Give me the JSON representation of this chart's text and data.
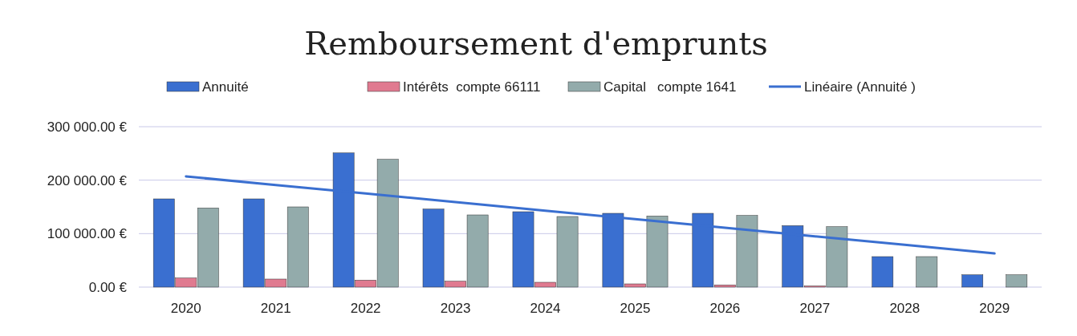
{
  "chart_data": {
    "type": "bar",
    "title": "Remboursement d'emprunts",
    "categories": [
      "2020",
      "2021",
      "2022",
      "2023",
      "2024",
      "2025",
      "2026",
      "2027",
      "2028",
      "2029"
    ],
    "series": [
      {
        "name": "Annuité",
        "color": "#3a6fd0",
        "values": [
          165000,
          165000,
          251000,
          146000,
          141000,
          138000,
          138000,
          115000,
          57000,
          23000
        ]
      },
      {
        "name": "Intérêts  compte 66111",
        "color": "#e07a90",
        "values": [
          17000,
          15000,
          13000,
          11000,
          9000,
          6000,
          4000,
          2000,
          0,
          0
        ]
      },
      {
        "name": "Capital   compte 1641",
        "color": "#93abab",
        "values": [
          148000,
          150000,
          239000,
          135000,
          132000,
          133000,
          134000,
          113000,
          57000,
          23000
        ]
      },
      {
        "name": "Linéaire (Annuité )",
        "type": "line",
        "color": "#3a6fd0",
        "values": [
          207000,
          191000,
          175000,
          159000,
          143000,
          127000,
          111000,
          95000,
          79000,
          63000
        ]
      }
    ],
    "ylim": [
      0,
      300000
    ],
    "yticks": [
      {
        "value": 0,
        "label": "0.00 €"
      },
      {
        "value": 100000,
        "label": "100 000.00 €"
      },
      {
        "value": 200000,
        "label": "200 000.00 €"
      },
      {
        "value": 300000,
        "label": "300 000.00 €"
      }
    ],
    "grid": "y",
    "legend": "top",
    "marker": "none",
    "line_style": "solid"
  }
}
